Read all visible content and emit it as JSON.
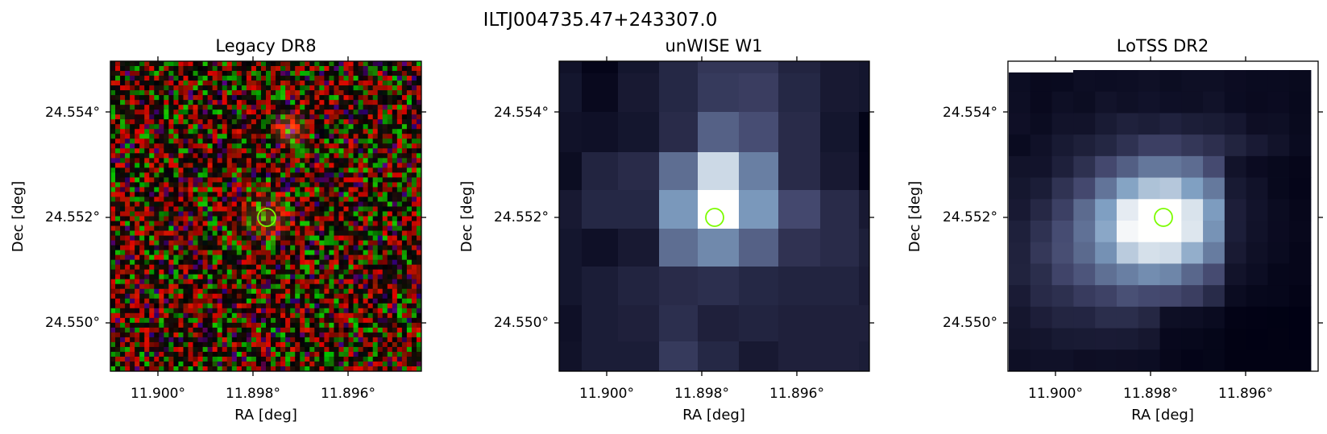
{
  "figure": {
    "source_name": "ILTJ004735.47+243307.0"
  },
  "panels": [
    {
      "id": "legacy",
      "title": "Legacy DR8",
      "image_kind": "rgb-optical-noise",
      "xlabel": "RA [deg]",
      "ylabel": "Dec [deg]",
      "xticks": [
        "11.900°",
        "11.898°",
        "11.896°"
      ],
      "yticks": [
        "24.554°",
        "24.552°",
        "24.550°"
      ]
    },
    {
      "id": "unwise",
      "title": "unWISE W1",
      "image_kind": "infrared-bone-colormap",
      "xlabel": "RA [deg]",
      "ylabel": "Dec [deg]",
      "xticks": [
        "11.900°",
        "11.898°",
        "11.896°"
      ],
      "yticks": [
        "24.554°",
        "24.552°",
        "24.550°"
      ]
    },
    {
      "id": "lotss",
      "title": "LoTSS DR2",
      "image_kind": "radio-bone-colormap",
      "xlabel": "RA [deg]",
      "ylabel": "Dec [deg]",
      "xticks": [
        "11.900°",
        "11.898°",
        "11.896°"
      ],
      "yticks": [
        "24.554°",
        "24.552°",
        "24.550°"
      ]
    }
  ],
  "marker": {
    "shape": "circle",
    "color": "#7CFC00",
    "ra": 11.8977,
    "dec": 24.552
  },
  "colors": {
    "marker": "#7CFC00",
    "frame": "#000000"
  }
}
